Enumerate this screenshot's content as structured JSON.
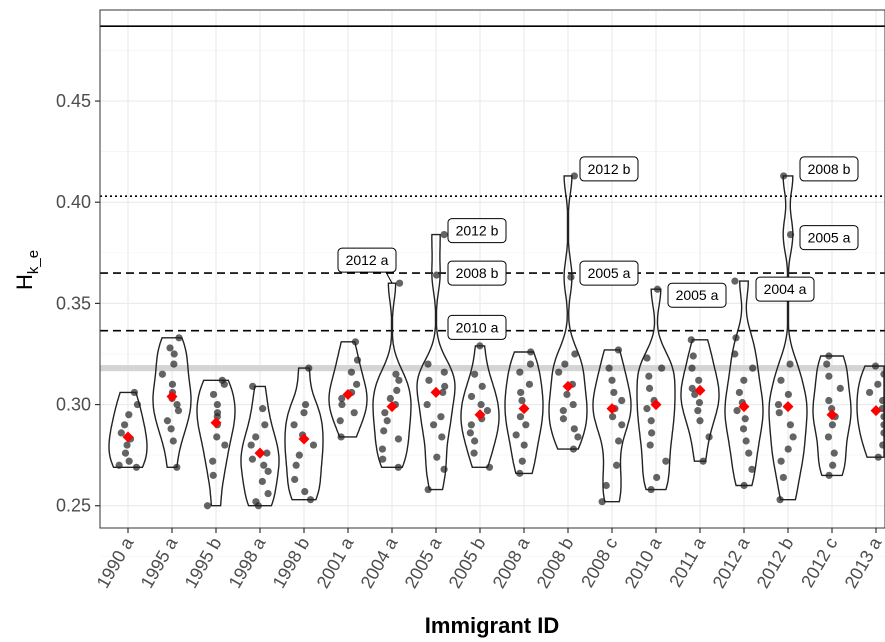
{
  "chart_data": {
    "type": "violin",
    "title": "",
    "xlabel": "Immigrant ID",
    "ylabel_main": "H",
    "ylabel_sub": "k_e",
    "ylim": [
      0.239,
      0.495
    ],
    "yticks": [
      0.25,
      0.3,
      0.35,
      0.4,
      0.45
    ],
    "ytick_labels": [
      "0.25",
      "0.30",
      "0.35",
      "0.40",
      "0.45"
    ],
    "grid": true,
    "colors": {
      "point": "#222222",
      "mean": "#ff0000",
      "band": "#d4d4d4",
      "line": "#000000"
    },
    "reference_lines": [
      {
        "value": 0.487,
        "style": "solid"
      },
      {
        "value": 0.403,
        "style": "dotted"
      },
      {
        "value": 0.365,
        "style": "dashed"
      },
      {
        "value": 0.3365,
        "style": "dashed"
      }
    ],
    "reference_band": [
      0.3165,
      0.3195
    ],
    "categories": [
      "1990 a",
      "1995 a",
      "1995 b",
      "1998 a",
      "1998 b",
      "2001 a",
      "2004 a",
      "2005 a",
      "2005 b",
      "2008 a",
      "2008 b",
      "2008 c",
      "2010 a",
      "2011 a",
      "2012 a",
      "2012 b",
      "2012 c",
      "2013 a"
    ],
    "groups": [
      {
        "id": "1990 a",
        "min": 0.269,
        "max": 0.306,
        "mean": 0.284,
        "points": [
          0.269,
          0.27,
          0.272,
          0.276,
          0.28,
          0.283,
          0.286,
          0.29,
          0.295,
          0.3,
          0.306
        ]
      },
      {
        "id": "1995 a",
        "min": 0.269,
        "max": 0.333,
        "mean": 0.304,
        "points": [
          0.269,
          0.282,
          0.288,
          0.292,
          0.297,
          0.3,
          0.303,
          0.306,
          0.31,
          0.315,
          0.32,
          0.325,
          0.328,
          0.333
        ]
      },
      {
        "id": "1995 b",
        "min": 0.25,
        "max": 0.312,
        "mean": 0.291,
        "points": [
          0.25,
          0.265,
          0.272,
          0.28,
          0.284,
          0.29,
          0.294,
          0.296,
          0.3,
          0.305,
          0.31,
          0.312
        ]
      },
      {
        "id": "1998 a",
        "min": 0.25,
        "max": 0.309,
        "mean": 0.276,
        "points": [
          0.25,
          0.252,
          0.256,
          0.262,
          0.267,
          0.27,
          0.273,
          0.276,
          0.28,
          0.284,
          0.29,
          0.298,
          0.309
        ]
      },
      {
        "id": "1998 b",
        "min": 0.253,
        "max": 0.318,
        "mean": 0.283,
        "points": [
          0.253,
          0.257,
          0.263,
          0.27,
          0.275,
          0.28,
          0.285,
          0.29,
          0.296,
          0.3,
          0.318
        ]
      },
      {
        "id": "2001 a",
        "min": 0.284,
        "max": 0.331,
        "mean": 0.305,
        "points": [
          0.284,
          0.292,
          0.296,
          0.3,
          0.303,
          0.306,
          0.31,
          0.316,
          0.322,
          0.331
        ]
      },
      {
        "id": "2004 a",
        "min": 0.269,
        "max": 0.36,
        "mean": 0.299,
        "points": [
          0.269,
          0.273,
          0.278,
          0.283,
          0.287,
          0.292,
          0.296,
          0.3,
          0.303,
          0.307,
          0.312,
          0.315,
          0.36
        ]
      },
      {
        "id": "2005 a",
        "min": 0.258,
        "max": 0.384,
        "mean": 0.306,
        "points": [
          0.258,
          0.268,
          0.274,
          0.284,
          0.29,
          0.294,
          0.3,
          0.306,
          0.309,
          0.312,
          0.316,
          0.32,
          0.364,
          0.384
        ]
      },
      {
        "id": "2005 b",
        "min": 0.269,
        "max": 0.329,
        "mean": 0.295,
        "points": [
          0.269,
          0.276,
          0.282,
          0.286,
          0.29,
          0.293,
          0.297,
          0.3,
          0.304,
          0.309,
          0.315,
          0.329
        ]
      },
      {
        "id": "2008 a",
        "min": 0.266,
        "max": 0.326,
        "mean": 0.298,
        "points": [
          0.266,
          0.272,
          0.28,
          0.285,
          0.29,
          0.294,
          0.298,
          0.302,
          0.306,
          0.31,
          0.316,
          0.32,
          0.326
        ]
      },
      {
        "id": "2008 b",
        "min": 0.278,
        "max": 0.413,
        "mean": 0.309,
        "points": [
          0.278,
          0.284,
          0.288,
          0.293,
          0.297,
          0.3,
          0.305,
          0.31,
          0.316,
          0.32,
          0.325,
          0.363,
          0.413
        ]
      },
      {
        "id": "2008 c",
        "min": 0.252,
        "max": 0.327,
        "mean": 0.298,
        "points": [
          0.252,
          0.26,
          0.27,
          0.282,
          0.29,
          0.294,
          0.298,
          0.302,
          0.306,
          0.312,
          0.318,
          0.327
        ]
      },
      {
        "id": "2010 a",
        "min": 0.258,
        "max": 0.357,
        "mean": 0.3,
        "points": [
          0.258,
          0.264,
          0.272,
          0.28,
          0.286,
          0.292,
          0.298,
          0.302,
          0.308,
          0.314,
          0.318,
          0.323,
          0.357
        ]
      },
      {
        "id": "2011 a",
        "min": 0.272,
        "max": 0.332,
        "mean": 0.307,
        "points": [
          0.272,
          0.284,
          0.292,
          0.297,
          0.301,
          0.305,
          0.308,
          0.312,
          0.318,
          0.324,
          0.332
        ]
      },
      {
        "id": "2012 a",
        "min": 0.26,
        "max": 0.361,
        "mean": 0.299,
        "points": [
          0.26,
          0.268,
          0.276,
          0.282,
          0.288,
          0.293,
          0.297,
          0.301,
          0.306,
          0.312,
          0.318,
          0.325,
          0.333,
          0.361
        ]
      },
      {
        "id": "2012 b",
        "min": 0.253,
        "max": 0.413,
        "mean": 0.299,
        "points": [
          0.253,
          0.264,
          0.272,
          0.278,
          0.284,
          0.29,
          0.296,
          0.3,
          0.305,
          0.312,
          0.32,
          0.384,
          0.413
        ]
      },
      {
        "id": "2012 c",
        "min": 0.265,
        "max": 0.324,
        "mean": 0.295,
        "points": [
          0.265,
          0.27,
          0.276,
          0.284,
          0.29,
          0.294,
          0.298,
          0.302,
          0.308,
          0.314,
          0.32,
          0.324
        ]
      },
      {
        "id": "2013 a",
        "min": 0.274,
        "max": 0.319,
        "mean": 0.297,
        "points": [
          0.274,
          0.28,
          0.286,
          0.29,
          0.294,
          0.298,
          0.302,
          0.306,
          0.31,
          0.315,
          0.319
        ]
      }
    ],
    "annotations": [
      {
        "text": "2012 a",
        "group": "2004 a",
        "value": 0.36
      },
      {
        "text": "2012 b",
        "group": "2005 a",
        "value": 0.384
      },
      {
        "text": "2008 b",
        "group": "2005 a",
        "value": 0.364
      },
      {
        "text": "2010 a",
        "group": "2005 a",
        "value": 0.35
      },
      {
        "text": "2012 b",
        "group": "2008 b",
        "value": 0.413
      },
      {
        "text": "2005 a",
        "group": "2008 b",
        "value": 0.363
      },
      {
        "text": "2005 a",
        "group": "2010 a",
        "value": 0.357
      },
      {
        "text": "2004 a",
        "group": "2012 a",
        "value": 0.36
      },
      {
        "text": "2008 b",
        "group": "2012 b",
        "value": 0.413
      },
      {
        "text": "2005 a",
        "group": "2012 b",
        "value": 0.384
      }
    ]
  }
}
